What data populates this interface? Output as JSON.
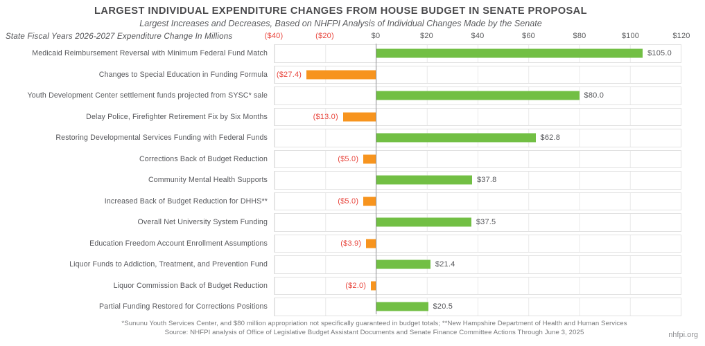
{
  "header": {
    "title": "LARGEST INDIVIDUAL EXPENDITURE CHANGES FROM HOUSE BUDGET IN SENATE PROPOSAL",
    "subtitle": "Largest Increases and Decreases, Based on NHFPI Analysis of Individual Changes Made by the Senate"
  },
  "axis_note": "State Fiscal Years 2026-2027 Expenditure Change In Millions",
  "chart_data": {
    "type": "bar",
    "orientation": "horizontal",
    "xlim": [
      -40,
      120
    ],
    "grid": true,
    "legend": false,
    "x_ticks": [
      {
        "value": -40,
        "label": "($40)"
      },
      {
        "value": -20,
        "label": "($20)"
      },
      {
        "value": 0,
        "label": "$0"
      },
      {
        "value": 20,
        "label": "$20"
      },
      {
        "value": 40,
        "label": "$40"
      },
      {
        "value": 60,
        "label": "$60"
      },
      {
        "value": 80,
        "label": "$80"
      },
      {
        "value": 100,
        "label": "$100"
      },
      {
        "value": 120,
        "label": "$120"
      }
    ],
    "categories": [
      "Medicaid Reimbursement Reversal with Minimum Federal Fund Match",
      "Changes to Special Education in Funding Formula",
      "Youth Development Center settlement funds projected from SYSC* sale",
      "Delay Police, Firefighter Retirement Fix by Six Months",
      "Restoring Developmental Services Funding with Federal Funds",
      "Corrections Back of Budget Reduction",
      "Community Mental Health Supports",
      "Increased Back of Budget Reduction for DHHS**",
      "Overall Net University System Funding",
      "Education Freedom Account Enrollment Assumptions",
      "Liquor Funds to Addiction, Treatment, and Prevention Fund",
      "Liquor Commission Back of Budget Reduction",
      "Partial Funding Restored for Corrections Positions"
    ],
    "values": [
      105.0,
      -27.4,
      80.0,
      -13.0,
      62.8,
      -5.0,
      37.8,
      -5.0,
      37.5,
      -3.9,
      21.4,
      -2.0,
      20.5
    ],
    "value_labels": [
      "$105.0",
      "($27.4)",
      "$80.0",
      "($13.0)",
      "$62.8",
      "($5.0)",
      "$37.8",
      "($5.0)",
      "$37.5",
      "($3.9)",
      "$21.4",
      "($2.0)",
      "$20.5"
    ],
    "colors": {
      "increase_bar": "#72bf44",
      "decrease_bar": "#f7941e",
      "negative_text": "#e8453c",
      "positive_text": "#55565a"
    }
  },
  "footer": {
    "footnote": "*Sununu Youth Services Center, and $80 million appropriation not specifically guaranteed in budget totals; **New Hampshire Department of Health and Human Services",
    "source": "Source: NHFPI analysis of Office of Legislative Budget Assistant Documents and Senate Finance Committee Actions Through June 3, 2025",
    "site": "nhfpi.org"
  }
}
